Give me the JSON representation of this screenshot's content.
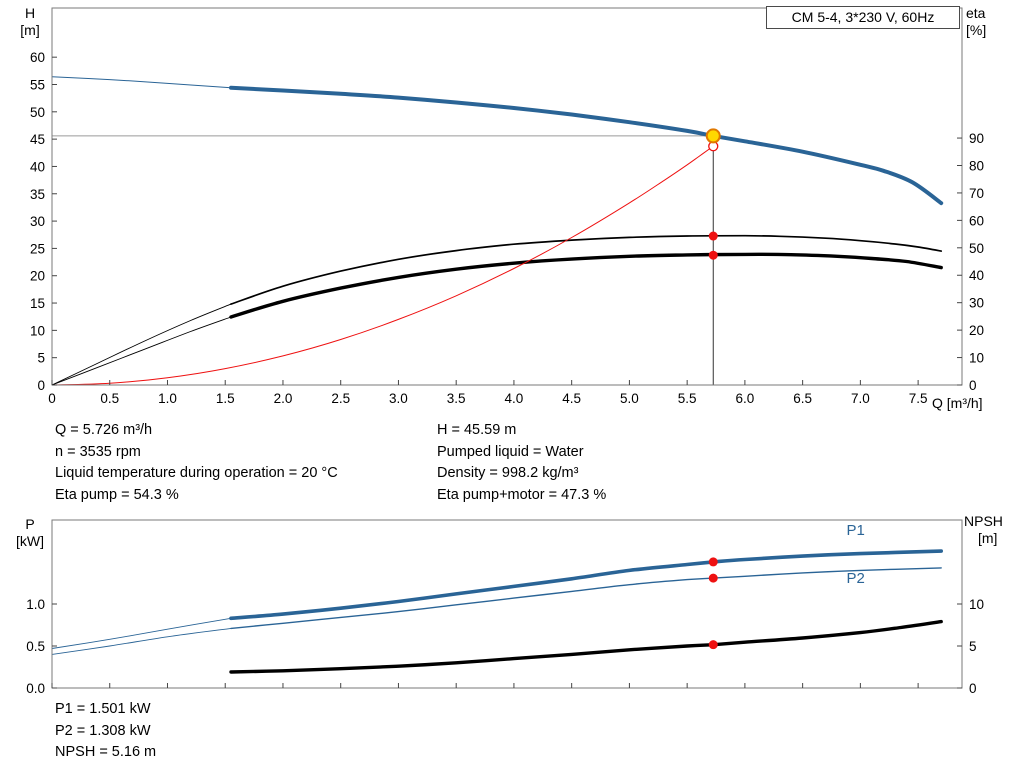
{
  "title_box": "CM 5-4, 3*230 V, 60Hz",
  "colors": {
    "curve_blue": "#2a6496",
    "curve_black": "#000000",
    "marker_red": "#ee1111",
    "duty_fill": "#ffd800",
    "duty_ring": "#e07800",
    "ref_gray": "#9a9a9a",
    "ref_black": "#333333",
    "axis_gray": "#7a7a7a",
    "label_blue": "#2a6496"
  },
  "duty_point": {
    "Q": 5.726,
    "H": 45.59,
    "eta_pump": 54.3,
    "eta_pump_motor": 47.3,
    "P1": 1.501,
    "P2": 1.308,
    "NPSH": 5.16
  },
  "info": {
    "top_left": [
      "Q = 5.726 m³/h",
      "n = 3535 rpm",
      "Liquid temperature during operation = 20 °C",
      "Eta pump = 54.3 %"
    ],
    "top_right": [
      "H = 45.59 m",
      "Pumped liquid = Water",
      "Density = 998.2 kg/m³",
      "Eta pump+motor = 47.3 %"
    ],
    "bottom": [
      "P1 = 1.501 kW",
      "P2 = 1.308 kW",
      "NPSH = 5.16 m"
    ]
  },
  "chart_data": [
    {
      "type": "line",
      "title": "CM 5-4, 3*230 V, 60Hz",
      "x_axis": {
        "label": "Q [m³/h]",
        "min": 0,
        "max": 7.88,
        "ticks": [
          0,
          0.5,
          1,
          1.5,
          2,
          2.5,
          3,
          3.5,
          4,
          4.5,
          5,
          5.5,
          6,
          6.5,
          7,
          7.5
        ],
        "tick_labels": [
          "0",
          "0.5",
          "1.0",
          "1.5",
          "2.0",
          "2.5",
          "3.0",
          "3.5",
          "4.0",
          "4.5",
          "5.0",
          "5.5",
          "6.0",
          "6.5",
          "7.0",
          "7.5"
        ]
      },
      "y_left": {
        "label_lines": [
          "H",
          "[m]"
        ],
        "min": 0,
        "max": 69,
        "ticks": [
          0,
          5,
          10,
          15,
          20,
          25,
          30,
          35,
          40,
          45,
          50,
          55,
          60
        ],
        "tick_labels": [
          "0",
          "5",
          "10",
          "15",
          "20",
          "25",
          "30",
          "35",
          "40",
          "45",
          "50",
          "55",
          "60"
        ]
      },
      "y_right": {
        "label_lines": [
          "eta",
          "[%]"
        ],
        "min": 0,
        "max": 137.4,
        "ticks": [
          0,
          10,
          20,
          30,
          40,
          50,
          60,
          70,
          80,
          90
        ],
        "tick_labels": [
          "0",
          "10",
          "20",
          "30",
          "40",
          "50",
          "60",
          "70",
          "80",
          "90"
        ]
      },
      "series": [
        {
          "name": "head-curve-extension",
          "axis": "left",
          "color": "curve_blue",
          "width": 1,
          "points": [
            [
              0,
              56.4
            ],
            [
              0.5,
              55.9
            ],
            [
              1.0,
              55.2
            ],
            [
              1.55,
              54.4
            ]
          ]
        },
        {
          "name": "head-curve",
          "axis": "left",
          "color": "curve_blue",
          "width": 4,
          "points": [
            [
              1.55,
              54.4
            ],
            [
              2,
              53.9
            ],
            [
              2.5,
              53.3
            ],
            [
              3,
              52.6
            ],
            [
              3.5,
              51.7
            ],
            [
              4,
              50.7
            ],
            [
              4.5,
              49.5
            ],
            [
              5,
              48.1
            ],
            [
              5.5,
              46.5
            ],
            [
              5.726,
              45.59
            ],
            [
              6,
              44.6
            ],
            [
              6.5,
              42.7
            ],
            [
              7,
              40.3
            ],
            [
              7.2,
              39.2
            ],
            [
              7.45,
              37.1
            ],
            [
              7.7,
              33.3
            ]
          ]
        },
        {
          "name": "eta-pump-curve-extension",
          "axis": "right",
          "color": "curve_black",
          "width": 0.9,
          "points": [
            [
              0,
              0
            ],
            [
              0.4,
              8
            ],
            [
              0.8,
              16
            ],
            [
              1.2,
              23.5
            ],
            [
              1.55,
              29.5
            ]
          ]
        },
        {
          "name": "eta-pump-curve",
          "axis": "right",
          "color": "curve_black",
          "width": 1.7,
          "points": [
            [
              1.55,
              29.5
            ],
            [
              2,
              36
            ],
            [
              2.5,
              41.5
            ],
            [
              3,
              45.8
            ],
            [
              3.5,
              49
            ],
            [
              4,
              51.3
            ],
            [
              4.5,
              52.8
            ],
            [
              5,
              53.8
            ],
            [
              5.5,
              54.3
            ],
            [
              6,
              54.4
            ],
            [
              6.3,
              54.2
            ],
            [
              6.7,
              53.5
            ],
            [
              7,
              52.6
            ],
            [
              7.3,
              51.4
            ],
            [
              7.5,
              50.3
            ],
            [
              7.7,
              48.8
            ]
          ]
        },
        {
          "name": "eta-pump-motor-curve-extension",
          "axis": "right",
          "color": "curve_black",
          "width": 0.9,
          "points": [
            [
              0,
              0
            ],
            [
              0.4,
              6.5
            ],
            [
              0.8,
              13
            ],
            [
              1.2,
              19.5
            ],
            [
              1.55,
              24.8
            ]
          ]
        },
        {
          "name": "eta-pump-motor-curve",
          "axis": "right",
          "color": "curve_black",
          "width": 3.4,
          "points": [
            [
              1.55,
              24.8
            ],
            [
              2,
              30.5
            ],
            [
              2.5,
              35.3
            ],
            [
              3,
              39.2
            ],
            [
              3.5,
              42.2
            ],
            [
              4,
              44.4
            ],
            [
              4.5,
              45.9
            ],
            [
              5,
              46.9
            ],
            [
              5.5,
              47.4
            ],
            [
              6,
              47.6
            ],
            [
              6.4,
              47.5
            ],
            [
              6.8,
              46.9
            ],
            [
              7.1,
              46.1
            ],
            [
              7.4,
              45
            ],
            [
              7.7,
              42.8
            ]
          ]
        },
        {
          "name": "system-curve",
          "axis": "left",
          "color": "marker_red",
          "width": 1,
          "points": [
            [
              0,
              0
            ],
            [
              0.5,
              0.33
            ],
            [
              1,
              1.33
            ],
            [
              1.5,
              3.0
            ],
            [
              2,
              5.33
            ],
            [
              2.5,
              8.33
            ],
            [
              3,
              12.0
            ],
            [
              3.5,
              16.33
            ],
            [
              4,
              21.32
            ],
            [
              4.5,
              26.99
            ],
            [
              5,
              33.32
            ],
            [
              5.3,
              37.44
            ],
            [
              5.5,
              40.3
            ],
            [
              5.6,
              41.8
            ],
            [
              5.7,
              43.3
            ],
            [
              5.726,
              43.7
            ]
          ]
        }
      ],
      "ref_lines": [
        {
          "name": "duty-head-refline",
          "type": "h",
          "axis": "left",
          "value": 45.59,
          "from": 0,
          "to": 5.726,
          "color": "ref_gray",
          "width": 1
        },
        {
          "name": "duty-flow-refline",
          "type": "v",
          "axis": "left",
          "value": 5.726,
          "from": 0,
          "to": 45.59,
          "color": "ref_black",
          "width": 1
        }
      ],
      "markers": [
        {
          "name": "system-curve-end-marker",
          "axis": "left",
          "x": 5.726,
          "y": 43.7,
          "r": 4.5,
          "fill": "#ffffff",
          "stroke": "marker_red",
          "stroke_width": 1.3,
          "interactable": false
        },
        {
          "name": "duty-point-marker",
          "axis": "left",
          "x": 5.726,
          "y": 45.59,
          "r": 6.5,
          "fill": "duty_fill",
          "stroke": "duty_ring",
          "stroke_width": 2,
          "interactable": true
        },
        {
          "name": "eta-pump-duty-dot",
          "axis": "right",
          "x": 5.726,
          "y": 54.3,
          "r": 4.5,
          "fill": "marker_red",
          "interactable": false
        },
        {
          "name": "eta-pump-motor-duty-dot",
          "axis": "right",
          "x": 5.726,
          "y": 47.3,
          "r": 4.5,
          "fill": "marker_red",
          "interactable": false
        }
      ],
      "curve_labels": []
    },
    {
      "type": "line",
      "title": "",
      "x_axis": {
        "label": "",
        "min": 0,
        "max": 7.88,
        "ticks": [
          0,
          0.5,
          1,
          1.5,
          2,
          2.5,
          3,
          3.5,
          4,
          4.5,
          5,
          5.5,
          6,
          6.5,
          7,
          7.5
        ],
        "tick_labels": []
      },
      "y_left": {
        "label_lines": [
          "P",
          "[kW]"
        ],
        "min": 0,
        "max": 2,
        "ticks": [
          0,
          0.5,
          1
        ],
        "tick_labels": [
          "0.0",
          "0.5",
          "1.0"
        ]
      },
      "y_right": {
        "label_lines": [
          "NPSH",
          "[m]"
        ],
        "min": 0,
        "max": 20,
        "ticks": [
          0,
          5,
          10
        ],
        "tick_labels": [
          "0",
          "5",
          "10"
        ]
      },
      "series": [
        {
          "name": "p1-curve-extension",
          "axis": "left",
          "color": "curve_blue",
          "width": 0.9,
          "points": [
            [
              0,
              0.47
            ],
            [
              0.5,
              0.58
            ],
            [
              1,
              0.7
            ],
            [
              1.55,
              0.83
            ]
          ]
        },
        {
          "name": "p1-curve",
          "axis": "left",
          "color": "curve_blue",
          "width": 3.6,
          "points": [
            [
              1.55,
              0.83
            ],
            [
              2,
              0.88
            ],
            [
              2.5,
              0.95
            ],
            [
              3,
              1.03
            ],
            [
              3.5,
              1.12
            ],
            [
              4,
              1.21
            ],
            [
              4.5,
              1.3
            ],
            [
              5,
              1.4
            ],
            [
              5.5,
              1.47
            ],
            [
              5.726,
              1.501
            ],
            [
              6,
              1.53
            ],
            [
              6.5,
              1.57
            ],
            [
              7,
              1.6
            ],
            [
              7.7,
              1.63
            ]
          ]
        },
        {
          "name": "p2-curve-extension",
          "axis": "left",
          "color": "curve_blue",
          "width": 0.9,
          "points": [
            [
              0,
              0.4
            ],
            [
              0.5,
              0.5
            ],
            [
              1,
              0.61
            ],
            [
              1.55,
              0.71
            ]
          ]
        },
        {
          "name": "p2-curve",
          "axis": "left",
          "color": "curve_blue",
          "width": 1.4,
          "points": [
            [
              1.55,
              0.71
            ],
            [
              2,
              0.77
            ],
            [
              2.5,
              0.84
            ],
            [
              3,
              0.91
            ],
            [
              3.5,
              0.99
            ],
            [
              4,
              1.07
            ],
            [
              4.5,
              1.15
            ],
            [
              5,
              1.23
            ],
            [
              5.5,
              1.29
            ],
            [
              5.726,
              1.308
            ],
            [
              6,
              1.33
            ],
            [
              6.5,
              1.37
            ],
            [
              7,
              1.4
            ],
            [
              7.7,
              1.43
            ]
          ]
        },
        {
          "name": "npsh-curve",
          "axis": "right",
          "color": "curve_black",
          "width": 3.4,
          "points": [
            [
              1.55,
              1.9
            ],
            [
              2,
              2.05
            ],
            [
              2.5,
              2.3
            ],
            [
              3,
              2.6
            ],
            [
              3.5,
              3.0
            ],
            [
              4,
              3.5
            ],
            [
              4.5,
              4.0
            ],
            [
              5,
              4.55
            ],
            [
              5.5,
              5.0
            ],
            [
              5.726,
              5.16
            ],
            [
              6,
              5.45
            ],
            [
              6.5,
              5.95
            ],
            [
              7,
              6.6
            ],
            [
              7.35,
              7.2
            ],
            [
              7.7,
              7.9
            ]
          ]
        }
      ],
      "ref_lines": [],
      "markers": [
        {
          "name": "p1-duty-dot",
          "axis": "left",
          "x": 5.726,
          "y": 1.501,
          "r": 4.5,
          "fill": "marker_red",
          "interactable": false
        },
        {
          "name": "p2-duty-dot",
          "axis": "left",
          "x": 5.726,
          "y": 1.308,
          "r": 4.5,
          "fill": "marker_red",
          "interactable": false
        },
        {
          "name": "npsh-duty-dot",
          "axis": "right",
          "x": 5.726,
          "y": 5.16,
          "r": 4.5,
          "fill": "marker_red",
          "interactable": false
        }
      ],
      "curve_labels": [
        {
          "name": "p1-curve-label",
          "text": "P1",
          "axis": "left",
          "x": 6.88,
          "y": 1.82,
          "color": "label_blue"
        },
        {
          "name": "p2-curve-label",
          "text": "P2",
          "axis": "left",
          "x": 6.88,
          "y": 1.25,
          "color": "label_blue"
        }
      ]
    }
  ]
}
